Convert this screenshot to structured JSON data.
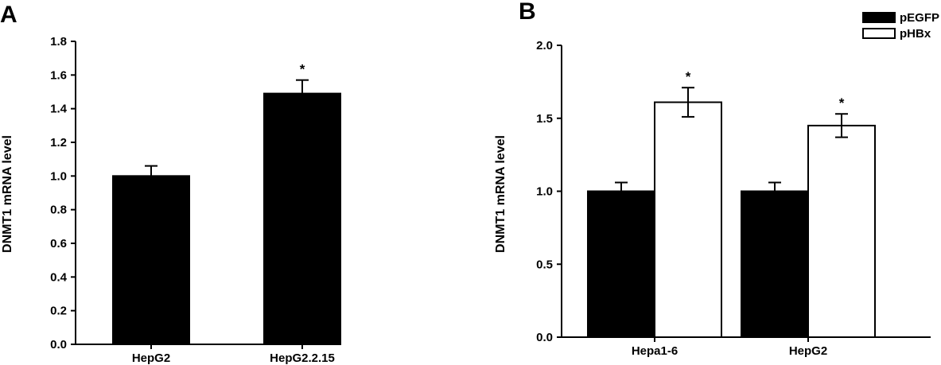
{
  "chart_data": [
    {
      "panel": "A",
      "type": "bar",
      "ylabel": "DNMT1 mRNA level",
      "ylim": [
        0,
        1.8
      ],
      "yticks": [
        "0.0",
        "0.2",
        "0.4",
        "0.6",
        "0.8",
        "1.0",
        "1.2",
        "1.4",
        "1.6",
        "1.8"
      ],
      "categories": [
        "HepG2",
        "HepG2.2.15"
      ],
      "series": [
        {
          "values": [
            1.0,
            1.49
          ],
          "errors": [
            0.06,
            0.08
          ],
          "color": "#000000"
        }
      ],
      "significance": [
        "",
        "*"
      ]
    },
    {
      "panel": "B",
      "type": "bar",
      "ylabel": "DNMT1 mRNA level",
      "ylim": [
        0,
        2.0
      ],
      "yticks": [
        "0.0",
        "0.5",
        "1.0",
        "1.5",
        "2.0"
      ],
      "categories": [
        "Hepa1-6",
        "HepG2"
      ],
      "series": [
        {
          "name": "pEGFP",
          "values": [
            1.0,
            1.0
          ],
          "errors": [
            0.06,
            0.06
          ],
          "color": "#000000"
        },
        {
          "name": "pHBx",
          "values": [
            1.61,
            1.45
          ],
          "errors": [
            0.1,
            0.08
          ],
          "color": "#ffffff"
        }
      ],
      "significance": [
        "*",
        "*"
      ],
      "legend_position": "top-right"
    }
  ]
}
